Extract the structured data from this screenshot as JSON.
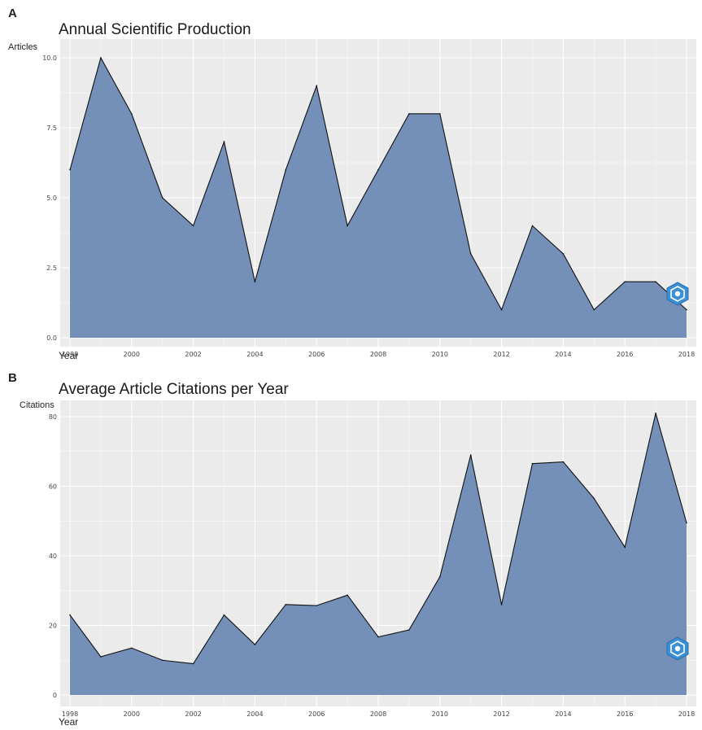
{
  "chart_data": [
    {
      "panel_label": "A",
      "type": "area",
      "title": "Annual Scientific Production",
      "xlabel": "Year",
      "ylabel": "Articles",
      "x": [
        1998,
        1999,
        2000,
        2001,
        2002,
        2003,
        2004,
        2005,
        2006,
        2007,
        2008,
        2009,
        2010,
        2011,
        2012,
        2013,
        2014,
        2015,
        2016,
        2017,
        2018
      ],
      "values": [
        6,
        10,
        8,
        5,
        4,
        7,
        2,
        6,
        9,
        4,
        6,
        8,
        8,
        3,
        1,
        4,
        3,
        1,
        2,
        2,
        1
      ],
      "xticks": [
        "1998",
        "2000",
        "2002",
        "2004",
        "2006",
        "2008",
        "2010",
        "2012",
        "2014",
        "2016",
        "2018"
      ],
      "yticks": [
        "0.0",
        "2.5",
        "5.0",
        "7.5",
        "10.0"
      ],
      "ytick_values": [
        0,
        2.5,
        5,
        7.5,
        10
      ],
      "xlim": [
        1998,
        2018
      ],
      "ylim": [
        0,
        10
      ],
      "grid": true,
      "fill_color": "#7490b8",
      "panel_background": "#ebebeb",
      "grid_color": "#ffffff"
    },
    {
      "panel_label": "B",
      "type": "area",
      "title": "Average Article Citations per Year",
      "xlabel": "Year",
      "ylabel": "Citations",
      "x": [
        1998,
        1999,
        2000,
        2001,
        2002,
        2003,
        2004,
        2005,
        2006,
        2007,
        2008,
        2009,
        2010,
        2011,
        2012,
        2013,
        2014,
        2015,
        2016,
        2017,
        2018
      ],
      "values": [
        23,
        11,
        13.5,
        10,
        9,
        23,
        14.5,
        26,
        25.7,
        28.7,
        16.7,
        18.7,
        34,
        69,
        26,
        66.5,
        67,
        56.5,
        42.5,
        81,
        49.5
      ],
      "xticks": [
        "1998",
        "2000",
        "2002",
        "2004",
        "2006",
        "2008",
        "2010",
        "2012",
        "2014",
        "2016",
        "2018"
      ],
      "yticks": [
        "0",
        "20",
        "40",
        "60",
        "80"
      ],
      "ytick_values": [
        0,
        20,
        40,
        60,
        80
      ],
      "xlim": [
        1998,
        2018
      ],
      "ylim": [
        0,
        80
      ],
      "grid": true,
      "fill_color": "#7490b8",
      "panel_background": "#ebebeb",
      "grid_color": "#ffffff"
    }
  ],
  "logo_icon": "hexagon-logo-icon"
}
